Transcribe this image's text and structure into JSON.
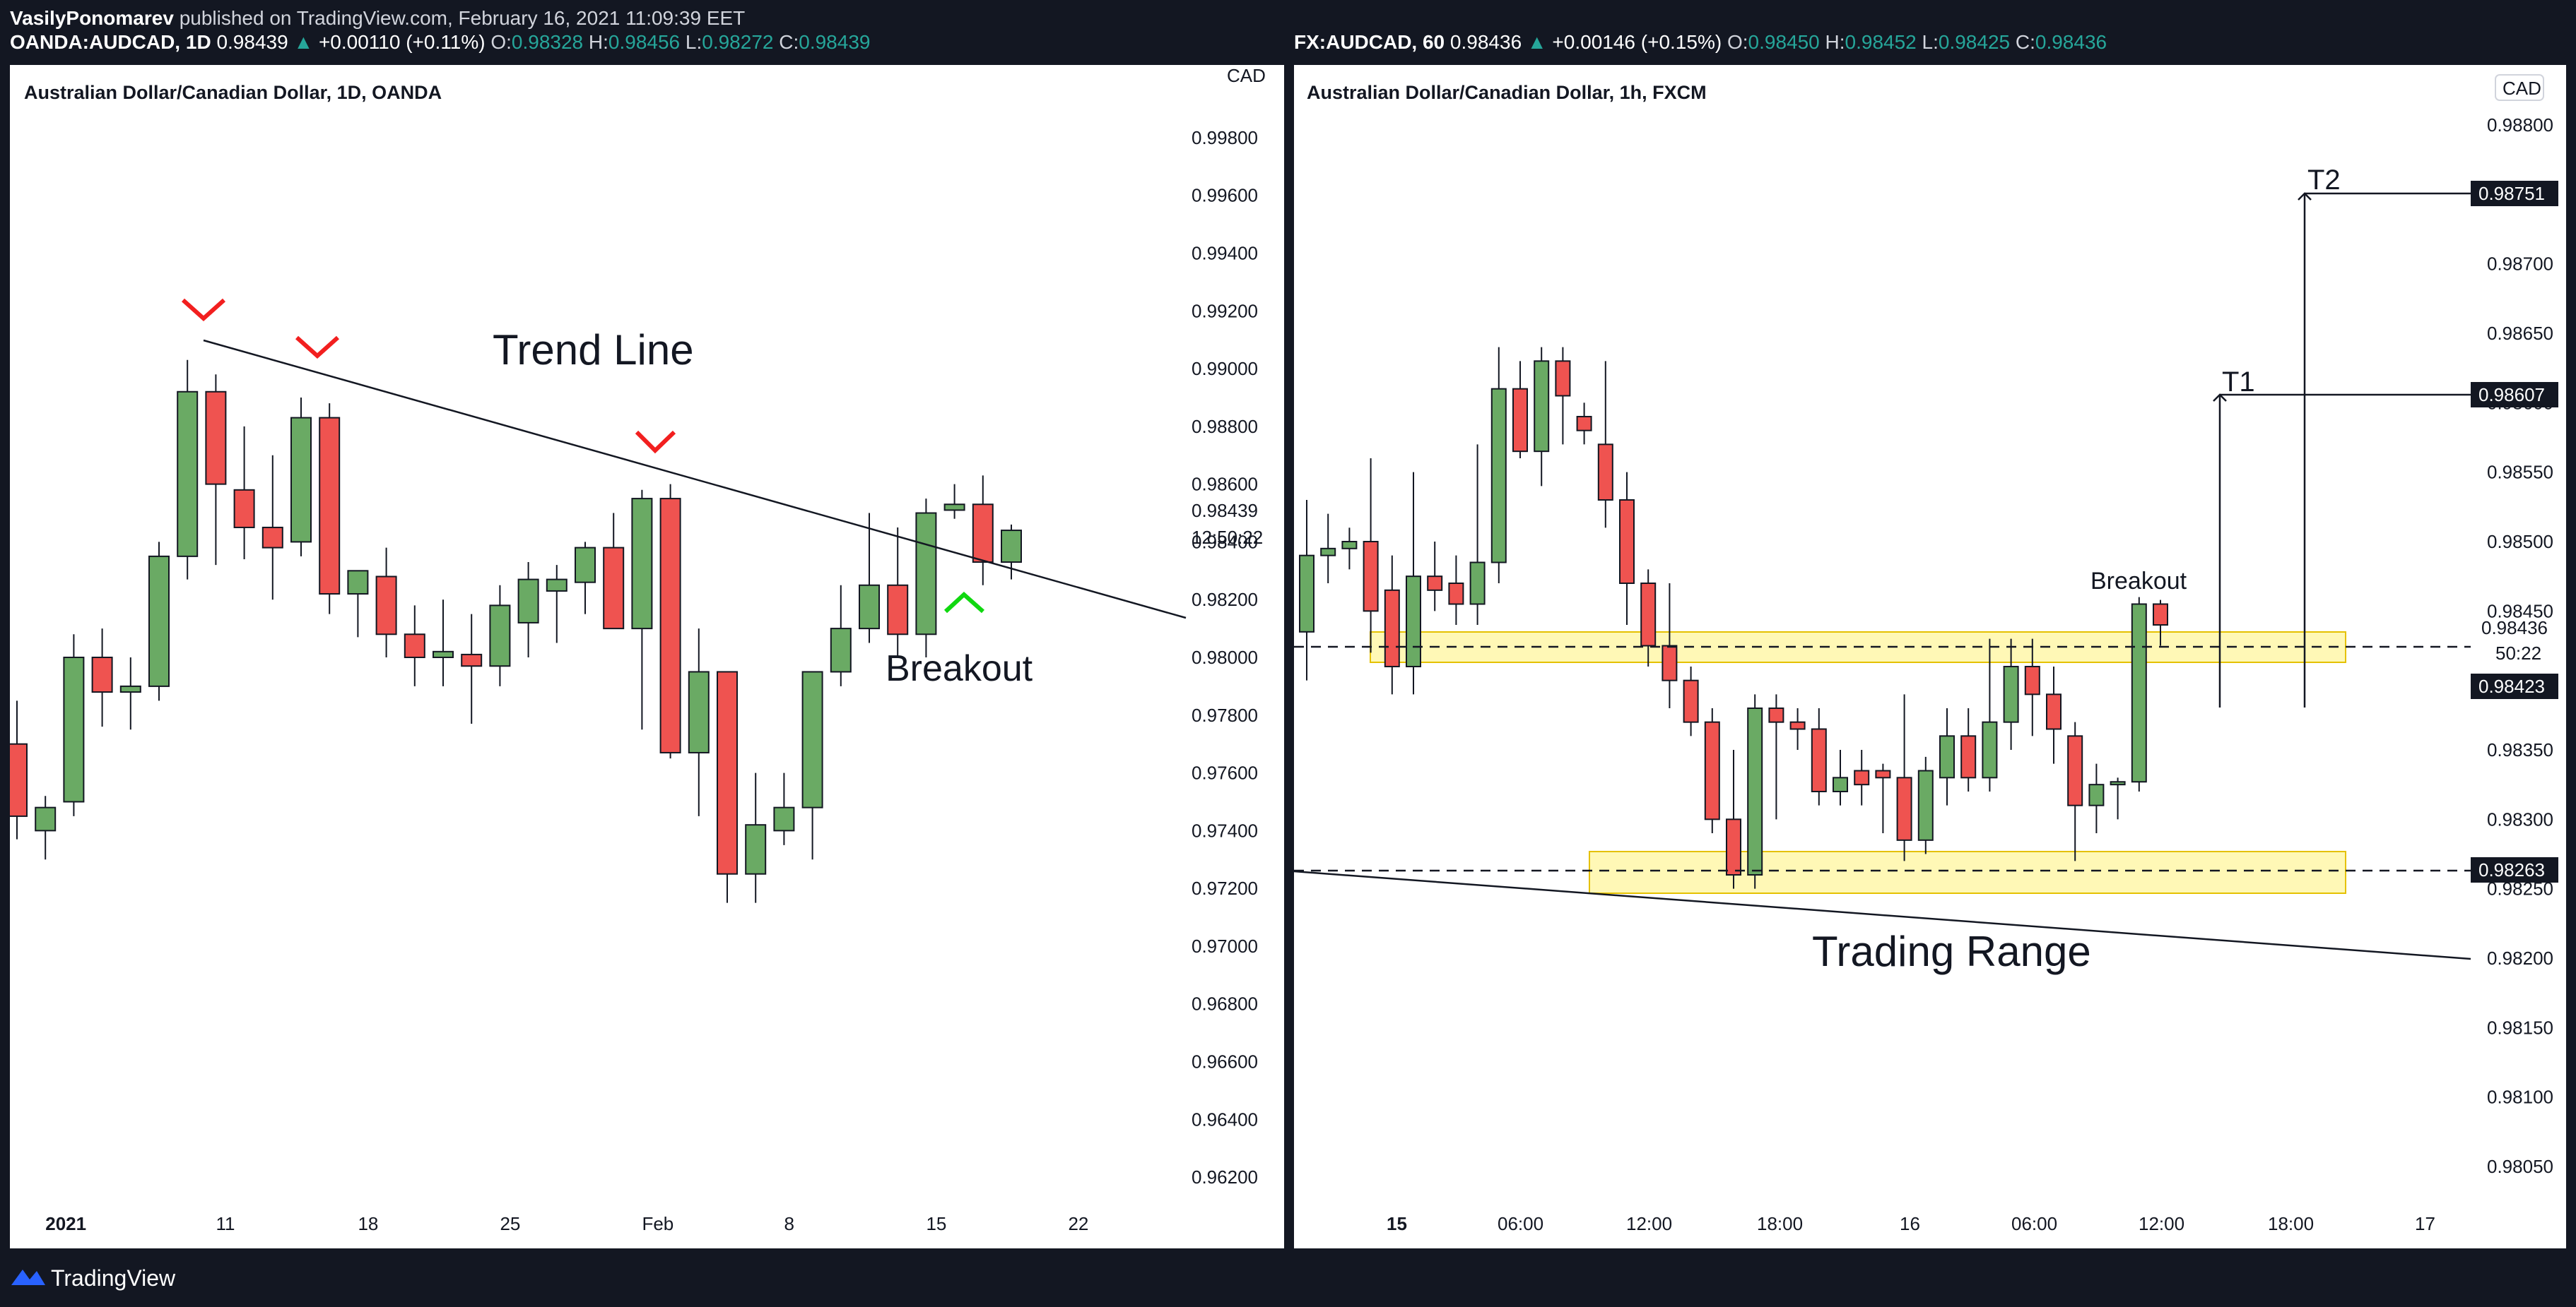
{
  "header": {
    "author": "VasilyPonomarev",
    "published": "published on TradingView.com, February 16, 2021 11:09:39 EET",
    "left": {
      "symbol": "OANDA:AUDCAD, 1D",
      "price": "0.98439",
      "change": "+0.00110 (+0.11%)",
      "o_label": "O:",
      "o": "0.98328",
      "h_label": "H:",
      "h": "0.98456",
      "l_label": "L:",
      "l": "0.98272",
      "c_label": "C:",
      "c": "0.98439"
    },
    "right": {
      "symbol": "FX:AUDCAD, 60",
      "price": "0.98436",
      "change": "+0.00146 (+0.15%)",
      "o_label": "O:",
      "o": "0.98450",
      "h_label": "H:",
      "h": "0.98452",
      "l_label": "L:",
      "l": "0.98425",
      "c_label": "C:",
      "c": "0.98436"
    }
  },
  "left_chart": {
    "title": "Australian Dollar/Canadian Dollar, 1D, OANDA",
    "currency": "CAD",
    "price_ticks": [
      "0.99800",
      "0.99600",
      "0.99400",
      "0.99200",
      "0.99000",
      "0.98800",
      "0.98600",
      "0.98400",
      "0.98200",
      "0.98000",
      "0.97800",
      "0.97600",
      "0.97400",
      "0.97200",
      "0.97000",
      "0.96800",
      "0.96600",
      "0.96400",
      "0.96200"
    ],
    "last_price": "0.98439",
    "countdown": "12:50:22",
    "time_labels": [
      "2021",
      "11",
      "18",
      "25",
      "Feb",
      "8",
      "15",
      "22"
    ],
    "annotations": {
      "trend_line": "Trend Line",
      "breakout": "Breakout"
    }
  },
  "right_chart": {
    "title": "Australian Dollar/Canadian Dollar, 1h, FXCM",
    "currency": "CAD",
    "price_ticks": [
      "0.98800",
      "0.98750",
      "0.98700",
      "0.98650",
      "0.98600",
      "0.98550",
      "0.98500",
      "0.98450",
      "0.98400",
      "0.98350",
      "0.98300",
      "0.98250",
      "0.98200",
      "0.98150",
      "0.98100",
      "0.98050"
    ],
    "last_price": "0.98436",
    "countdown": "50:22",
    "markers": {
      "t2": "0.98751",
      "t1": "0.98607",
      "resist": "0.98423",
      "support": "0.98263"
    },
    "time_labels": [
      "15",
      "06:00",
      "12:00",
      "18:00",
      "16",
      "06:00",
      "12:00",
      "18:00",
      "17"
    ],
    "annotations": {
      "t1": "T1",
      "t2": "T2",
      "breakout": "Breakout",
      "trading_range": "Trading Range"
    }
  },
  "footer": {
    "brand": "TradingView"
  },
  "colors": {
    "up": "#6aaa64",
    "down": "#ef5350",
    "zone": "#fff59d",
    "bg": "#131722",
    "accent": "#26a69a"
  },
  "chart_data": [
    {
      "type": "candlestick",
      "title": "Australian Dollar/Canadian Dollar, 1D, OANDA",
      "ylim": [
        0.961,
        0.999
      ],
      "candles": [
        {
          "o": 0.977,
          "h": 0.9785,
          "l": 0.9737,
          "c": 0.9745
        },
        {
          "o": 0.974,
          "h": 0.9752,
          "l": 0.973,
          "c": 0.9748
        },
        {
          "o": 0.975,
          "h": 0.9808,
          "l": 0.9745,
          "c": 0.98
        },
        {
          "o": 0.98,
          "h": 0.981,
          "l": 0.9776,
          "c": 0.9788
        },
        {
          "o": 0.9788,
          "h": 0.98,
          "l": 0.9775,
          "c": 0.979
        },
        {
          "o": 0.979,
          "h": 0.984,
          "l": 0.9785,
          "c": 0.9835
        },
        {
          "o": 0.9835,
          "h": 0.9903,
          "l": 0.9827,
          "c": 0.9892
        },
        {
          "o": 0.9892,
          "h": 0.9898,
          "l": 0.9832,
          "c": 0.986
        },
        {
          "o": 0.9858,
          "h": 0.988,
          "l": 0.9834,
          "c": 0.9845
        },
        {
          "o": 0.9845,
          "h": 0.987,
          "l": 0.982,
          "c": 0.9838
        },
        {
          "o": 0.984,
          "h": 0.989,
          "l": 0.9835,
          "c": 0.9883
        },
        {
          "o": 0.9883,
          "h": 0.9888,
          "l": 0.9815,
          "c": 0.9822
        },
        {
          "o": 0.9822,
          "h": 0.983,
          "l": 0.9807,
          "c": 0.983
        },
        {
          "o": 0.9828,
          "h": 0.9838,
          "l": 0.98,
          "c": 0.9808
        },
        {
          "o": 0.9808,
          "h": 0.9818,
          "l": 0.979,
          "c": 0.98
        },
        {
          "o": 0.98,
          "h": 0.982,
          "l": 0.979,
          "c": 0.9802
        },
        {
          "o": 0.9801,
          "h": 0.9815,
          "l": 0.9777,
          "c": 0.9797
        },
        {
          "o": 0.9797,
          "h": 0.9825,
          "l": 0.979,
          "c": 0.9818
        },
        {
          "o": 0.9812,
          "h": 0.9833,
          "l": 0.98,
          "c": 0.9827
        },
        {
          "o": 0.9823,
          "h": 0.9832,
          "l": 0.9805,
          "c": 0.9827
        },
        {
          "o": 0.9826,
          "h": 0.984,
          "l": 0.9815,
          "c": 0.9838
        },
        {
          "o": 0.9838,
          "h": 0.985,
          "l": 0.9812,
          "c": 0.981
        },
        {
          "o": 0.981,
          "h": 0.9858,
          "l": 0.9775,
          "c": 0.9855
        },
        {
          "o": 0.9855,
          "h": 0.986,
          "l": 0.9765,
          "c": 0.9767
        },
        {
          "o": 0.9767,
          "h": 0.981,
          "l": 0.9745,
          "c": 0.9795
        },
        {
          "o": 0.9795,
          "h": 0.9795,
          "l": 0.9715,
          "c": 0.9725
        },
        {
          "o": 0.9725,
          "h": 0.976,
          "l": 0.9715,
          "c": 0.9742
        },
        {
          "o": 0.974,
          "h": 0.976,
          "l": 0.9735,
          "c": 0.9748
        },
        {
          "o": 0.9748,
          "h": 0.9795,
          "l": 0.973,
          "c": 0.9795
        },
        {
          "o": 0.9795,
          "h": 0.9825,
          "l": 0.979,
          "c": 0.981
        },
        {
          "o": 0.981,
          "h": 0.985,
          "l": 0.9805,
          "c": 0.9825
        },
        {
          "o": 0.9825,
          "h": 0.9845,
          "l": 0.98,
          "c": 0.9808
        },
        {
          "o": 0.9808,
          "h": 0.9855,
          "l": 0.98,
          "c": 0.985
        },
        {
          "o": 0.9851,
          "h": 0.986,
          "l": 0.9848,
          "c": 0.9853
        },
        {
          "o": 0.9853,
          "h": 0.9863,
          "l": 0.9825,
          "c": 0.9833
        },
        {
          "o": 0.9833,
          "h": 0.9846,
          "l": 0.9827,
          "c": 0.9844
        }
      ]
    },
    {
      "type": "candlestick",
      "title": "Australian Dollar/Canadian Dollar, 1h, FXCM",
      "ylim": [
        0.9803,
        0.9882
      ],
      "candles": [
        {
          "o": 0.98435,
          "h": 0.9853,
          "l": 0.984,
          "c": 0.9849
        },
        {
          "o": 0.9849,
          "h": 0.9852,
          "l": 0.9847,
          "c": 0.98495
        },
        {
          "o": 0.98495,
          "h": 0.9851,
          "l": 0.9848,
          "c": 0.985
        },
        {
          "o": 0.985,
          "h": 0.9856,
          "l": 0.9842,
          "c": 0.9845
        },
        {
          "o": 0.98465,
          "h": 0.9849,
          "l": 0.9839,
          "c": 0.9841
        },
        {
          "o": 0.9841,
          "h": 0.9855,
          "l": 0.9839,
          "c": 0.98475
        },
        {
          "o": 0.98475,
          "h": 0.985,
          "l": 0.9845,
          "c": 0.98465
        },
        {
          "o": 0.9847,
          "h": 0.9849,
          "l": 0.9844,
          "c": 0.98455
        },
        {
          "o": 0.98455,
          "h": 0.9857,
          "l": 0.9844,
          "c": 0.98485
        },
        {
          "o": 0.98485,
          "h": 0.9864,
          "l": 0.9847,
          "c": 0.9861
        },
        {
          "o": 0.9861,
          "h": 0.9863,
          "l": 0.9856,
          "c": 0.98565
        },
        {
          "o": 0.98565,
          "h": 0.9864,
          "l": 0.9854,
          "c": 0.9863
        },
        {
          "o": 0.9863,
          "h": 0.9864,
          "l": 0.9857,
          "c": 0.98605
        },
        {
          "o": 0.9859,
          "h": 0.986,
          "l": 0.9857,
          "c": 0.9858
        },
        {
          "o": 0.9857,
          "h": 0.9863,
          "l": 0.9851,
          "c": 0.9853
        },
        {
          "o": 0.9853,
          "h": 0.9855,
          "l": 0.9844,
          "c": 0.9847
        },
        {
          "o": 0.9847,
          "h": 0.9848,
          "l": 0.9841,
          "c": 0.98425
        },
        {
          "o": 0.98425,
          "h": 0.9847,
          "l": 0.9838,
          "c": 0.984
        },
        {
          "o": 0.984,
          "h": 0.9841,
          "l": 0.9836,
          "c": 0.9837
        },
        {
          "o": 0.9837,
          "h": 0.9838,
          "l": 0.9829,
          "c": 0.983
        },
        {
          "o": 0.983,
          "h": 0.9835,
          "l": 0.9825,
          "c": 0.9826
        },
        {
          "o": 0.9826,
          "h": 0.9839,
          "l": 0.9825,
          "c": 0.9838
        },
        {
          "o": 0.9838,
          "h": 0.9839,
          "l": 0.983,
          "c": 0.9837
        },
        {
          "o": 0.9837,
          "h": 0.9838,
          "l": 0.9835,
          "c": 0.98365
        },
        {
          "o": 0.98365,
          "h": 0.9838,
          "l": 0.9831,
          "c": 0.9832
        },
        {
          "o": 0.9832,
          "h": 0.9835,
          "l": 0.9831,
          "c": 0.9833
        },
        {
          "o": 0.98335,
          "h": 0.9835,
          "l": 0.9831,
          "c": 0.98325
        },
        {
          "o": 0.98335,
          "h": 0.9834,
          "l": 0.9829,
          "c": 0.9833
        },
        {
          "o": 0.9833,
          "h": 0.9839,
          "l": 0.9827,
          "c": 0.98285
        },
        {
          "o": 0.98285,
          "h": 0.98345,
          "l": 0.98275,
          "c": 0.98335
        },
        {
          "o": 0.9833,
          "h": 0.9838,
          "l": 0.9831,
          "c": 0.9836
        },
        {
          "o": 0.9836,
          "h": 0.9838,
          "l": 0.9832,
          "c": 0.9833
        },
        {
          "o": 0.9833,
          "h": 0.9843,
          "l": 0.9832,
          "c": 0.9837
        },
        {
          "o": 0.9837,
          "h": 0.9843,
          "l": 0.9835,
          "c": 0.9841
        },
        {
          "o": 0.9841,
          "h": 0.9843,
          "l": 0.9836,
          "c": 0.9839
        },
        {
          "o": 0.9839,
          "h": 0.9841,
          "l": 0.9834,
          "c": 0.98365
        },
        {
          "o": 0.9836,
          "h": 0.9837,
          "l": 0.9827,
          "c": 0.9831
        },
        {
          "o": 0.9831,
          "h": 0.9834,
          "l": 0.9829,
          "c": 0.98325
        },
        {
          "o": 0.98325,
          "h": 0.9833,
          "l": 0.983,
          "c": 0.98327
        },
        {
          "o": 0.98327,
          "h": 0.9846,
          "l": 0.9832,
          "c": 0.98455
        },
        {
          "o": 0.98455,
          "h": 0.98458,
          "l": 0.98425,
          "c": 0.9844
        }
      ]
    }
  ]
}
